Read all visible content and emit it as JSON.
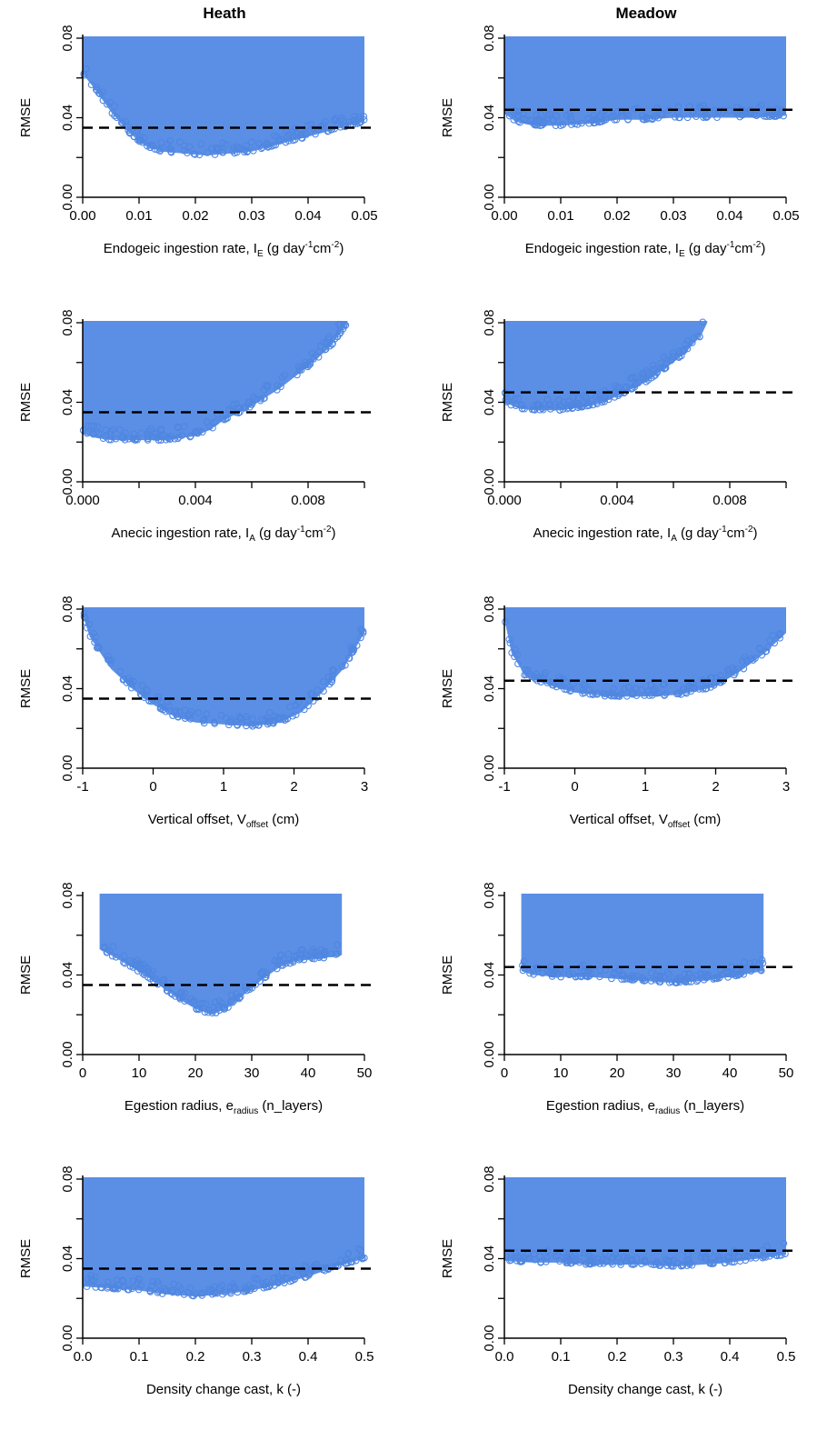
{
  "columns": [
    {
      "title": "Heath"
    },
    {
      "title": "Meadow"
    }
  ],
  "colors": {
    "points": "#5B8FE6",
    "point_edge": "#4F86E0",
    "threshold": "#000000"
  },
  "ylabel": "RMSE",
  "rows": [
    {
      "xlabel": {
        "pre": "Endogeic ingestion rate, I",
        "sub": "E",
        "post1": " (g day",
        "sup1": "-1",
        "mid": "cm",
        "sup2": "-2",
        "post2": ")"
      }
    },
    {
      "xlabel": {
        "pre": "Anecic ingestion rate, I",
        "sub": "A",
        "post1": " (g day",
        "sup1": "-1",
        "mid": "cm",
        "sup2": "-2",
        "post2": ")"
      }
    },
    {
      "xlabel": {
        "pre": "Vertical offset, V",
        "sub": "offset",
        "post1": " (cm)",
        "sup1": "",
        "mid": "",
        "sup2": "",
        "post2": ""
      }
    },
    {
      "xlabel": {
        "pre": "Egestion radius, e",
        "sub": "radius",
        "post1": " (n_layers)",
        "sup1": "",
        "mid": "",
        "sup2": "",
        "post2": ""
      }
    },
    {
      "xlabel": {
        "pre": "Density change cast, k (-)",
        "sub": "",
        "post1": "",
        "sup1": "",
        "mid": "",
        "sup2": "",
        "post2": ""
      }
    }
  ],
  "chart_data": [
    {
      "type": "scatter",
      "panel": "Heath / Endogeic",
      "ylabel": "RMSE",
      "xlim": [
        0,
        0.05
      ],
      "ylim": [
        0,
        0.08
      ],
      "xticks": [
        "0.00",
        "0.01",
        "0.02",
        "0.03",
        "0.04",
        "0.05"
      ],
      "yticks": [
        "0.00",
        "0.04",
        "0.08"
      ],
      "threshold": 0.035,
      "lower_envelope": {
        "x": [
          0.0,
          0.002,
          0.005,
          0.008,
          0.011,
          0.014,
          0.018,
          0.022,
          0.026,
          0.03,
          0.034,
          0.038,
          0.042,
          0.046,
          0.05
        ],
        "y": [
          0.062,
          0.055,
          0.043,
          0.033,
          0.026,
          0.023,
          0.022,
          0.021,
          0.022,
          0.023,
          0.026,
          0.029,
          0.032,
          0.035,
          0.038
        ]
      }
    },
    {
      "type": "scatter",
      "panel": "Meadow / Endogeic",
      "ylabel": "RMSE",
      "xlim": [
        0,
        0.05
      ],
      "ylim": [
        0,
        0.08
      ],
      "xticks": [
        "0.00",
        "0.01",
        "0.02",
        "0.03",
        "0.04",
        "0.05"
      ],
      "yticks": [
        "0.00",
        "0.04",
        "0.08"
      ],
      "threshold": 0.044,
      "lower_envelope": {
        "x": [
          0.0,
          0.002,
          0.005,
          0.01,
          0.015,
          0.02,
          0.025,
          0.03,
          0.035,
          0.04,
          0.045,
          0.05
        ],
        "y": [
          0.042,
          0.038,
          0.036,
          0.036,
          0.037,
          0.039,
          0.039,
          0.04,
          0.04,
          0.04,
          0.04,
          0.041
        ]
      }
    },
    {
      "type": "scatter",
      "panel": "Heath / Anecic",
      "ylabel": "RMSE",
      "xlim": [
        0,
        0.01
      ],
      "ylim": [
        0,
        0.08
      ],
      "xticks": [
        "0.000",
        "0.004",
        "0.008"
      ],
      "yticks": [
        "0.00",
        "0.04",
        "0.08"
      ],
      "threshold": 0.035,
      "lower_envelope": {
        "x": [
          0.0,
          0.0005,
          0.001,
          0.002,
          0.003,
          0.004,
          0.0045,
          0.005,
          0.006,
          0.007,
          0.008,
          0.0088,
          0.0094
        ],
        "y": [
          0.024,
          0.022,
          0.021,
          0.021,
          0.021,
          0.023,
          0.026,
          0.031,
          0.038,
          0.047,
          0.058,
          0.068,
          0.08
        ]
      }
    },
    {
      "type": "scatter",
      "panel": "Meadow / Anecic",
      "ylabel": "RMSE",
      "xlim": [
        0,
        0.01
      ],
      "ylim": [
        0,
        0.08
      ],
      "xticks": [
        "0.000",
        "0.004",
        "0.008"
      ],
      "yticks": [
        "0.00",
        "0.04",
        "0.08"
      ],
      "threshold": 0.045,
      "lower_envelope": {
        "x": [
          0.0,
          0.0005,
          0.001,
          0.002,
          0.003,
          0.0035,
          0.004,
          0.005,
          0.006,
          0.0065,
          0.007,
          0.0072
        ],
        "y": [
          0.04,
          0.037,
          0.036,
          0.036,
          0.038,
          0.04,
          0.043,
          0.05,
          0.06,
          0.066,
          0.074,
          0.08
        ]
      }
    },
    {
      "type": "scatter",
      "panel": "Heath / Vertical offset",
      "ylabel": "RMSE",
      "xlim": [
        -1,
        3
      ],
      "ylim": [
        0,
        0.08
      ],
      "xticks": [
        "-1",
        "0",
        "1",
        "2",
        "3"
      ],
      "yticks": [
        "0.00",
        "0.04",
        "0.08"
      ],
      "threshold": 0.035,
      "lower_envelope": {
        "x": [
          -1,
          -0.9,
          -0.6,
          -0.3,
          0,
          0.3,
          0.6,
          1.0,
          1.4,
          1.8,
          2.1,
          2.4,
          2.7,
          3
        ],
        "y": [
          0.077,
          0.066,
          0.05,
          0.04,
          0.032,
          0.026,
          0.023,
          0.022,
          0.021,
          0.023,
          0.028,
          0.038,
          0.05,
          0.068
        ]
      }
    },
    {
      "type": "scatter",
      "panel": "Meadow / Vertical offset",
      "ylabel": "RMSE",
      "xlim": [
        -1,
        3
      ],
      "ylim": [
        0,
        0.08
      ],
      "xticks": [
        "-1",
        "0",
        "1",
        "2",
        "3"
      ],
      "yticks": [
        "0.00",
        "0.04",
        "0.08"
      ],
      "threshold": 0.044,
      "lower_envelope": {
        "x": [
          -1,
          -0.9,
          -0.7,
          -0.3,
          0,
          0.5,
          1.0,
          1.5,
          2.0,
          2.4,
          2.7,
          3
        ],
        "y": [
          0.075,
          0.058,
          0.046,
          0.041,
          0.038,
          0.036,
          0.036,
          0.037,
          0.041,
          0.05,
          0.058,
          0.068
        ]
      }
    },
    {
      "type": "scatter",
      "panel": "Heath / Egestion radius",
      "ylabel": "RMSE",
      "xlim": [
        0,
        50
      ],
      "ylim": [
        0,
        0.08
      ],
      "xticks": [
        "0",
        "10",
        "20",
        "30",
        "40",
        "50"
      ],
      "yticks": [
        "0.00",
        "0.04",
        "0.08"
      ],
      "threshold": 0.035,
      "lower_envelope": {
        "x": [
          3,
          5,
          8,
          11,
          14,
          17,
          20,
          23,
          26,
          29,
          32,
          35,
          38,
          41,
          44,
          46
        ],
        "y": [
          0.053,
          0.05,
          0.045,
          0.04,
          0.034,
          0.028,
          0.023,
          0.02,
          0.024,
          0.031,
          0.038,
          0.044,
          0.047,
          0.048,
          0.049,
          0.05
        ]
      }
    },
    {
      "type": "scatter",
      "panel": "Meadow / Egestion radius",
      "ylabel": "RMSE",
      "xlim": [
        0,
        50
      ],
      "ylim": [
        0,
        0.08
      ],
      "xticks": [
        "0",
        "10",
        "20",
        "30",
        "40",
        "50"
      ],
      "yticks": [
        "0.00",
        "0.04",
        "0.08"
      ],
      "threshold": 0.044,
      "lower_envelope": {
        "x": [
          3,
          5,
          10,
          15,
          20,
          25,
          30,
          35,
          40,
          44,
          46
        ],
        "y": [
          0.042,
          0.04,
          0.039,
          0.039,
          0.038,
          0.037,
          0.036,
          0.037,
          0.039,
          0.041,
          0.042
        ]
      }
    },
    {
      "type": "scatter",
      "panel": "Heath / Density change",
      "ylabel": "RMSE",
      "xlim": [
        0,
        0.5
      ],
      "ylim": [
        0,
        0.08
      ],
      "xticks": [
        "0.0",
        "0.1",
        "0.2",
        "0.3",
        "0.4",
        "0.5"
      ],
      "yticks": [
        "0.00",
        "0.04",
        "0.08"
      ],
      "threshold": 0.035,
      "lower_envelope": {
        "x": [
          0,
          0.05,
          0.1,
          0.15,
          0.2,
          0.25,
          0.3,
          0.35,
          0.4,
          0.45,
          0.5
        ],
        "y": [
          0.026,
          0.025,
          0.024,
          0.022,
          0.021,
          0.022,
          0.024,
          0.027,
          0.031,
          0.036,
          0.04
        ]
      }
    },
    {
      "type": "scatter",
      "panel": "Meadow / Density change",
      "ylabel": "RMSE",
      "xlim": [
        0,
        0.5
      ],
      "ylim": [
        0,
        0.08
      ],
      "xticks": [
        "0.0",
        "0.1",
        "0.2",
        "0.3",
        "0.4",
        "0.5"
      ],
      "yticks": [
        "0.00",
        "0.04",
        "0.08"
      ],
      "threshold": 0.044,
      "lower_envelope": {
        "x": [
          0,
          0.05,
          0.1,
          0.15,
          0.2,
          0.25,
          0.3,
          0.35,
          0.4,
          0.45,
          0.5
        ],
        "y": [
          0.039,
          0.038,
          0.038,
          0.037,
          0.037,
          0.037,
          0.036,
          0.037,
          0.038,
          0.04,
          0.042
        ]
      }
    }
  ]
}
